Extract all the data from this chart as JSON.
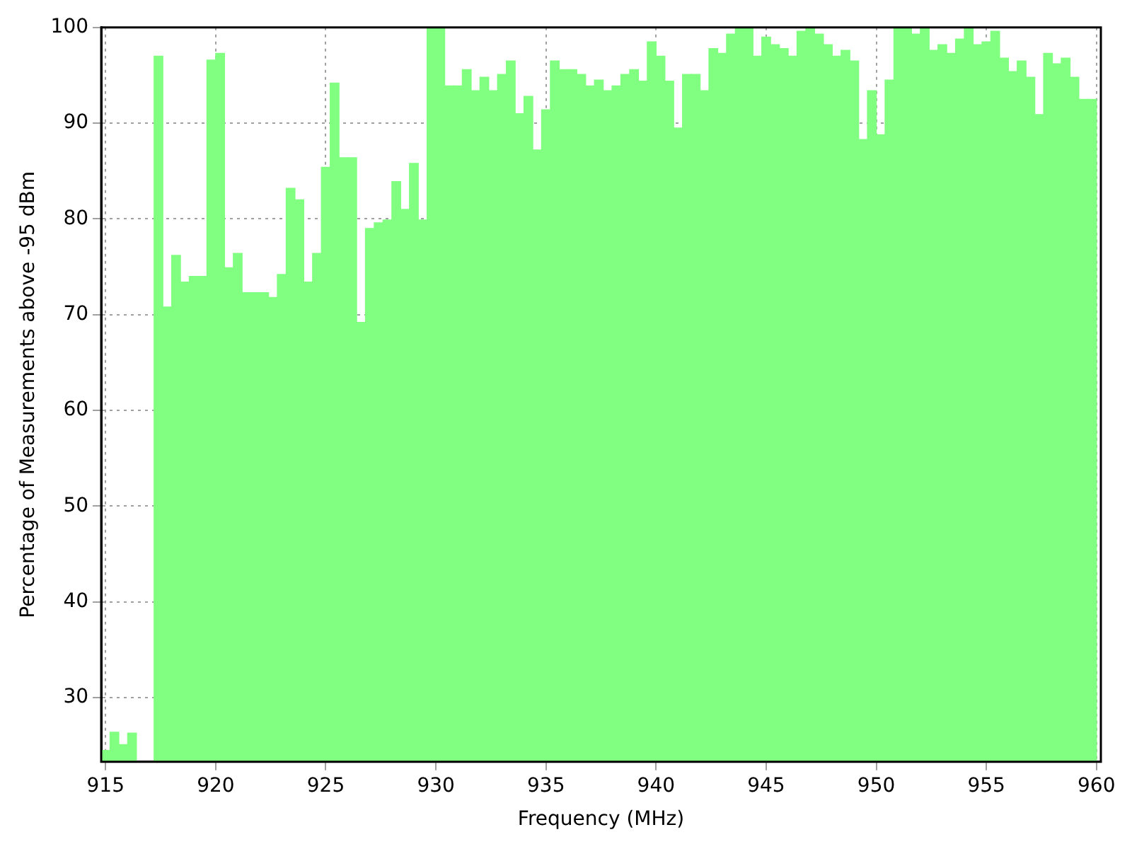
{
  "chart_data": {
    "type": "bar",
    "xlabel": "Frequency (MHz)",
    "ylabel": "Percentage of Measurements above -95 dBm",
    "x": [
      915,
      915.4,
      915.8,
      916.2,
      916.6,
      917,
      917.4,
      917.8,
      918.2,
      918.6,
      919,
      919.4,
      919.8,
      920.2,
      920.6,
      921,
      921.4,
      921.8,
      922.2,
      922.6,
      923,
      923.4,
      923.8,
      924.2,
      924.6,
      925,
      925.4,
      925.8,
      926.2,
      926.6,
      927,
      927.4,
      927.8,
      928.2,
      928.6,
      929,
      929.4,
      929.8,
      930.2,
      930.6,
      931,
      931.4,
      931.8,
      932.2,
      932.6,
      933,
      933.4,
      933.8,
      934.2,
      934.6,
      935,
      935.4,
      935.8,
      936.2,
      936.6,
      937,
      937.4,
      937.8,
      938.2,
      938.6,
      939,
      939.4,
      939.8,
      940.2,
      940.6,
      941,
      941.4,
      941.8,
      942.2,
      942.6,
      943,
      943.4,
      943.8,
      944.2,
      944.6,
      945,
      945.4,
      945.8,
      946.2,
      946.6,
      947,
      947.4,
      947.8,
      948.2,
      948.6,
      949,
      949.4,
      949.8,
      950.2,
      950.6,
      951,
      951.4,
      951.8,
      952.2,
      952.6,
      953,
      953.4,
      953.8,
      954.2,
      954.6,
      955,
      955.4,
      955.8,
      956.2,
      956.6,
      957,
      957.4,
      957.8,
      958.2,
      958.6,
      959,
      959.4,
      959.8
    ],
    "values": [
      24.5,
      26.4,
      25.1,
      26.3,
      null,
      null,
      97.0,
      70.8,
      76.2,
      73.4,
      74.0,
      74.0,
      96.6,
      97.3,
      74.9,
      76.4,
      72.3,
      72.3,
      72.3,
      71.8,
      74.2,
      83.2,
      82.0,
      73.4,
      76.4,
      85.4,
      94.2,
      86.4,
      86.4,
      69.2,
      79.0,
      79.6,
      79.9,
      83.9,
      81.0,
      85.8,
      79.9,
      100,
      100,
      93.9,
      93.9,
      95.6,
      93.4,
      94.8,
      93.4,
      95.1,
      96.5,
      91.0,
      92.8,
      87.2,
      91.4,
      96.5,
      95.6,
      95.6,
      95.1,
      93.9,
      94.5,
      93.4,
      93.9,
      95.1,
      95.6,
      94.4,
      98.5,
      97.0,
      94.4,
      89.5,
      95.1,
      95.1,
      93.4,
      97.8,
      97.3,
      99.3,
      100,
      100,
      97.0,
      99.0,
      98.2,
      97.8,
      97.0,
      99.6,
      99.9,
      99.3,
      98.2,
      97.0,
      97.6,
      96.5,
      88.3,
      93.4,
      88.8,
      94.5,
      100,
      100,
      99.3,
      99.9,
      97.6,
      98.2,
      97.3,
      98.8,
      99.9,
      98.2,
      98.5,
      99.6,
      96.8,
      95.4,
      96.5,
      94.8,
      90.9,
      97.3,
      96.2,
      96.8,
      94.8,
      92.5,
      92.5
    ],
    "color": "#80ff80",
    "xlim": [
      914.8,
      960.2
    ],
    "ylim": [
      23.3,
      100
    ],
    "xticks": [
      915,
      920,
      925,
      930,
      935,
      940,
      945,
      950,
      955,
      960
    ],
    "yticks": [
      30,
      40,
      50,
      60,
      70,
      80,
      90,
      100
    ],
    "grid": true
  }
}
